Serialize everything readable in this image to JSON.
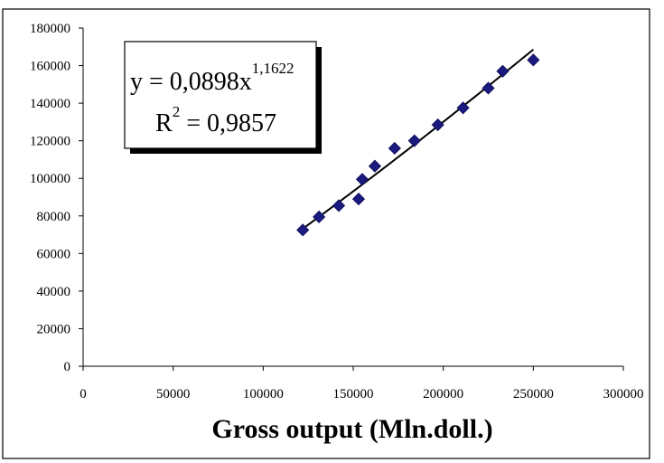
{
  "chart_data": {
    "type": "scatter",
    "title": "",
    "xlabel": "Gross output (Mln.doll.)",
    "ylabel": "",
    "xlim": [
      0,
      300000
    ],
    "ylim": [
      0,
      180000
    ],
    "x_ticks": [
      0,
      50000,
      100000,
      150000,
      200000,
      250000,
      300000
    ],
    "y_ticks": [
      0,
      20000,
      40000,
      60000,
      80000,
      100000,
      120000,
      140000,
      160000,
      180000
    ],
    "x_tick_labels": [
      "0",
      "50000",
      "100000",
      "150000",
      "200000",
      "250000",
      "300000"
    ],
    "y_tick_labels": [
      "0",
      "20000",
      "40000",
      "60000",
      "80000",
      "100000",
      "120000",
      "140000",
      "160000",
      "180000"
    ],
    "grid": false,
    "legend": "none",
    "marker_color": "#1a1a80",
    "trendline_color": "#000000",
    "series": [
      {
        "points": [
          {
            "x": 122000,
            "y": 72500
          },
          {
            "x": 131000,
            "y": 79500
          },
          {
            "x": 142000,
            "y": 85500
          },
          {
            "x": 153000,
            "y": 89000
          },
          {
            "x": 155000,
            "y": 99500
          },
          {
            "x": 162000,
            "y": 106500
          },
          {
            "x": 173000,
            "y": 116000
          },
          {
            "x": 184000,
            "y": 120000
          },
          {
            "x": 197000,
            "y": 128500
          },
          {
            "x": 211000,
            "y": 137500
          },
          {
            "x": 225000,
            "y": 148000
          },
          {
            "x": 233000,
            "y": 157000
          },
          {
            "x": 250000,
            "y": 163000
          }
        ]
      }
    ],
    "trendline": {
      "type": "power",
      "coefficient": 0.0898,
      "exponent": 1.1622,
      "x_start": 122000,
      "x_end": 250000
    },
    "annotation": {
      "equation_base": "y = 0,0898x",
      "equation_exponent": "1,1622",
      "r2_base": "R",
      "r2_exponent": "2",
      "r2_value": " = 0,9857"
    }
  }
}
